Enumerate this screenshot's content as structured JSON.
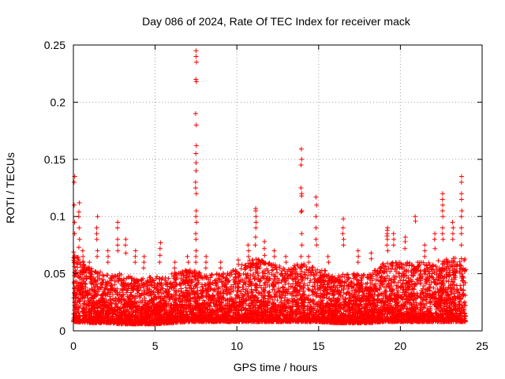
{
  "chart_data": {
    "type": "scatter",
    "title": "Day 086 of 2024, Rate Of TEC Index for receiver mack",
    "xlabel": "GPS time / hours",
    "ylabel": "ROTI / TECUs",
    "xlim": [
      0,
      25
    ],
    "ylim": [
      0,
      0.25
    ],
    "xticks": [
      0,
      5,
      10,
      15,
      20,
      25
    ],
    "yticks": [
      0,
      0.05,
      0.1,
      0.15,
      0.2,
      0.25
    ],
    "xtick_labels": [
      "0",
      "5",
      "10",
      "15",
      "20",
      "25"
    ],
    "ytick_labels": [
      "0",
      "0.05",
      "0.1",
      "0.15",
      "0.2",
      "0.25"
    ],
    "grid": true,
    "marker": "+",
    "series_color": "#ff0000",
    "envelope": [
      {
        "x": 0.0,
        "low": 0.008,
        "high": 0.07
      },
      {
        "x": 1.0,
        "low": 0.007,
        "high": 0.055
      },
      {
        "x": 2.0,
        "low": 0.007,
        "high": 0.05
      },
      {
        "x": 3.0,
        "low": 0.006,
        "high": 0.05
      },
      {
        "x": 4.0,
        "low": 0.006,
        "high": 0.045
      },
      {
        "x": 5.0,
        "low": 0.006,
        "high": 0.048
      },
      {
        "x": 6.0,
        "low": 0.007,
        "high": 0.05
      },
      {
        "x": 7.0,
        "low": 0.008,
        "high": 0.055
      },
      {
        "x": 8.0,
        "low": 0.008,
        "high": 0.05
      },
      {
        "x": 9.0,
        "low": 0.008,
        "high": 0.05
      },
      {
        "x": 10.0,
        "low": 0.008,
        "high": 0.055
      },
      {
        "x": 11.0,
        "low": 0.008,
        "high": 0.065
      },
      {
        "x": 12.0,
        "low": 0.008,
        "high": 0.06
      },
      {
        "x": 13.0,
        "low": 0.008,
        "high": 0.055
      },
      {
        "x": 14.0,
        "low": 0.008,
        "high": 0.06
      },
      {
        "x": 15.0,
        "low": 0.008,
        "high": 0.055
      },
      {
        "x": 16.0,
        "low": 0.007,
        "high": 0.05
      },
      {
        "x": 17.0,
        "low": 0.007,
        "high": 0.05
      },
      {
        "x": 18.0,
        "low": 0.007,
        "high": 0.05
      },
      {
        "x": 19.0,
        "low": 0.008,
        "high": 0.06
      },
      {
        "x": 20.0,
        "low": 0.008,
        "high": 0.06
      },
      {
        "x": 21.0,
        "low": 0.008,
        "high": 0.06
      },
      {
        "x": 22.0,
        "low": 0.008,
        "high": 0.06
      },
      {
        "x": 23.0,
        "low": 0.008,
        "high": 0.065
      },
      {
        "x": 24.0,
        "low": 0.008,
        "high": 0.065
      }
    ],
    "spikes": [
      {
        "x": 0.05,
        "values": [
          0.11,
          0.13,
          0.135,
          0.095,
          0.085
        ]
      },
      {
        "x": 0.35,
        "values": [
          0.112,
          0.104,
          0.1,
          0.09,
          0.08,
          0.073
        ]
      },
      {
        "x": 0.6,
        "values": [
          0.07,
          0.065,
          0.06
        ]
      },
      {
        "x": 1.0,
        "values": [
          0.06,
          0.055
        ]
      },
      {
        "x": 1.45,
        "values": [
          0.1,
          0.09,
          0.085,
          0.08,
          0.07,
          0.065
        ]
      },
      {
        "x": 2.1,
        "values": [
          0.07,
          0.065,
          0.06
        ]
      },
      {
        "x": 2.7,
        "values": [
          0.095,
          0.09,
          0.08,
          0.075,
          0.07
        ]
      },
      {
        "x": 3.2,
        "values": [
          0.08,
          0.075,
          0.068
        ]
      },
      {
        "x": 3.8,
        "values": [
          0.07,
          0.065,
          0.06
        ]
      },
      {
        "x": 4.3,
        "values": [
          0.065,
          0.06,
          0.055
        ]
      },
      {
        "x": 5.3,
        "values": [
          0.077,
          0.072,
          0.066,
          0.06
        ]
      },
      {
        "x": 6.2,
        "values": [
          0.06,
          0.055
        ]
      },
      {
        "x": 7.0,
        "values": [
          0.065,
          0.06
        ]
      },
      {
        "x": 7.5,
        "values": [
          0.245,
          0.24,
          0.235,
          0.22,
          0.218,
          0.19,
          0.18,
          0.162,
          0.155,
          0.147,
          0.14,
          0.13,
          0.125,
          0.12,
          0.105,
          0.1,
          0.095,
          0.085,
          0.08,
          0.07,
          0.065,
          0.06
        ]
      },
      {
        "x": 8.1,
        "values": [
          0.065,
          0.06,
          0.055
        ]
      },
      {
        "x": 9.0,
        "values": [
          0.06,
          0.055
        ]
      },
      {
        "x": 10.1,
        "values": [
          0.062,
          0.058
        ]
      },
      {
        "x": 10.7,
        "values": [
          0.075,
          0.07,
          0.065
        ]
      },
      {
        "x": 11.15,
        "values": [
          0.107,
          0.105,
          0.1,
          0.095,
          0.09,
          0.082,
          0.075
        ]
      },
      {
        "x": 11.7,
        "values": [
          0.078,
          0.072,
          0.066
        ]
      },
      {
        "x": 12.3,
        "values": [
          0.07,
          0.065
        ]
      },
      {
        "x": 13.0,
        "values": [
          0.065,
          0.06
        ]
      },
      {
        "x": 13.95,
        "values": [
          0.159,
          0.15,
          0.145,
          0.125,
          0.12,
          0.118,
          0.105,
          0.104,
          0.085,
          0.075,
          0.065
        ]
      },
      {
        "x": 14.4,
        "values": [
          0.065,
          0.06
        ]
      },
      {
        "x": 14.85,
        "values": [
          0.117,
          0.11,
          0.1,
          0.09,
          0.08,
          0.075
        ]
      },
      {
        "x": 15.6,
        "values": [
          0.065,
          0.06
        ]
      },
      {
        "x": 16.5,
        "values": [
          0.098,
          0.09,
          0.085,
          0.08,
          0.075
        ]
      },
      {
        "x": 17.4,
        "values": [
          0.07,
          0.065,
          0.06
        ]
      },
      {
        "x": 18.2,
        "values": [
          0.068,
          0.063
        ]
      },
      {
        "x": 19.2,
        "values": [
          0.09,
          0.088,
          0.085,
          0.083,
          0.08,
          0.075,
          0.07
        ]
      },
      {
        "x": 19.6,
        "values": [
          0.085,
          0.08,
          0.075
        ]
      },
      {
        "x": 20.3,
        "values": [
          0.082,
          0.078,
          0.072
        ]
      },
      {
        "x": 20.9,
        "values": [
          0.1,
          0.096
        ]
      },
      {
        "x": 21.5,
        "values": [
          0.075,
          0.07,
          0.065
        ]
      },
      {
        "x": 22.1,
        "values": [
          0.085,
          0.08,
          0.072
        ]
      },
      {
        "x": 22.6,
        "values": [
          0.12,
          0.115,
          0.11,
          0.105,
          0.1,
          0.09,
          0.085,
          0.08
        ]
      },
      {
        "x": 23.2,
        "values": [
          0.095,
          0.09,
          0.085,
          0.08
        ]
      },
      {
        "x": 23.75,
        "values": [
          0.135,
          0.13,
          0.12,
          0.115,
          0.105,
          0.1,
          0.09,
          0.085,
          0.075
        ]
      }
    ]
  }
}
